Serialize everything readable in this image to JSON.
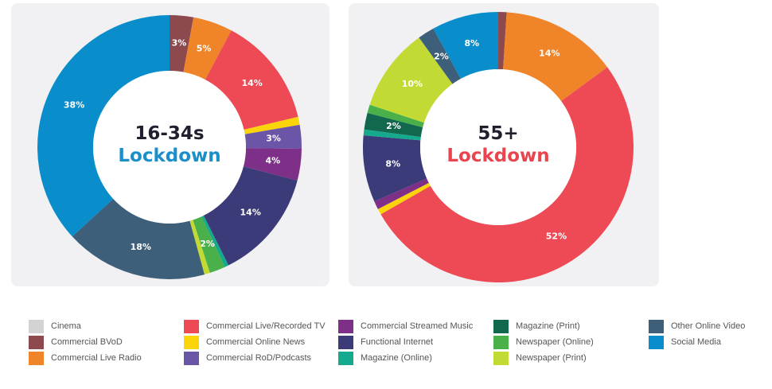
{
  "chart_data": [
    {
      "type": "donut",
      "center_title": [
        "16-34s",
        "Lockdown"
      ],
      "center_title_colors": [
        "#1f1f2e",
        "#1a8fc9"
      ],
      "slices": [
        {
          "category": "Commercial BVoD",
          "value": 3,
          "label": "3%"
        },
        {
          "category": "Commercial Live Radio",
          "value": 5,
          "label": "5%"
        },
        {
          "category": "Commercial Live/Recorded TV",
          "value": 14,
          "label": "14%"
        },
        {
          "category": "Commercial Online News",
          "value": 1,
          "label": ""
        },
        {
          "category": "Commercial RoD/Podcasts",
          "value": 3,
          "label": "3%"
        },
        {
          "category": "Commercial Streamed Music",
          "value": 4,
          "label": "4%"
        },
        {
          "category": "Functional Internet",
          "value": 14,
          "label": "14%"
        },
        {
          "category": "Magazine (Online)",
          "value": 0.5,
          "label": ""
        },
        {
          "category": "Newspaper (Online)",
          "value": 2,
          "label": "2%"
        },
        {
          "category": "Newspaper (Print)",
          "value": 0.7,
          "label": ""
        },
        {
          "category": "Other Online Video",
          "value": 18,
          "label": "18%"
        },
        {
          "category": "Social Media",
          "value": 38,
          "label": "38%"
        }
      ]
    },
    {
      "type": "donut",
      "center_title": [
        "55+",
        "Lockdown"
      ],
      "center_title_colors": [
        "#1f1f2e",
        "#e8454f"
      ],
      "slices": [
        {
          "category": "Commercial BVoD",
          "value": 1,
          "label": ""
        },
        {
          "category": "Commercial Live Radio",
          "value": 14,
          "label": "14%"
        },
        {
          "category": "Commercial Live/Recorded TV",
          "value": 52,
          "label": "52%"
        },
        {
          "category": "Commercial Online News",
          "value": 0.7,
          "label": ""
        },
        {
          "category": "Commercial Streamed Music",
          "value": 1,
          "label": ""
        },
        {
          "category": "Functional Internet",
          "value": 8,
          "label": "8%"
        },
        {
          "category": "Magazine (Online)",
          "value": 0.7,
          "label": ""
        },
        {
          "category": "Magazine (Print)",
          "value": 2,
          "label": "2%"
        },
        {
          "category": "Newspaper (Online)",
          "value": 1,
          "label": ""
        },
        {
          "category": "Newspaper (Print)",
          "value": 10,
          "label": "10%"
        },
        {
          "category": "Other Online Video",
          "value": 2,
          "label": "2%"
        },
        {
          "category": "Social Media",
          "value": 8,
          "label": "8%"
        }
      ]
    }
  ],
  "legend": [
    {
      "name": "Cinema",
      "color": "#d3d3d3"
    },
    {
      "name": "Commercial BVoD",
      "color": "#8c4a4f"
    },
    {
      "name": "Commercial Live Radio",
      "color": "#ef8528"
    },
    {
      "name": "Commercial Live/Recorded TV",
      "color": "#ee4a55"
    },
    {
      "name": "Commercial Online News",
      "color": "#fbd40a"
    },
    {
      "name": "Commercial RoD/Podcasts",
      "color": "#6b55a6"
    },
    {
      "name": "Commercial Streamed Music",
      "color": "#7e3088"
    },
    {
      "name": "Functional Internet",
      "color": "#3a3b78"
    },
    {
      "name": "Magazine (Online)",
      "color": "#15a98e"
    },
    {
      "name": "Magazine (Print)",
      "color": "#12684f"
    },
    {
      "name": "Newspaper (Online)",
      "color": "#49b04a"
    },
    {
      "name": "Newspaper (Print)",
      "color": "#c4da34"
    },
    {
      "name": "Other Online Video",
      "color": "#3e5f7a"
    },
    {
      "name": "Social Media",
      "color": "#0a8ecb"
    }
  ]
}
